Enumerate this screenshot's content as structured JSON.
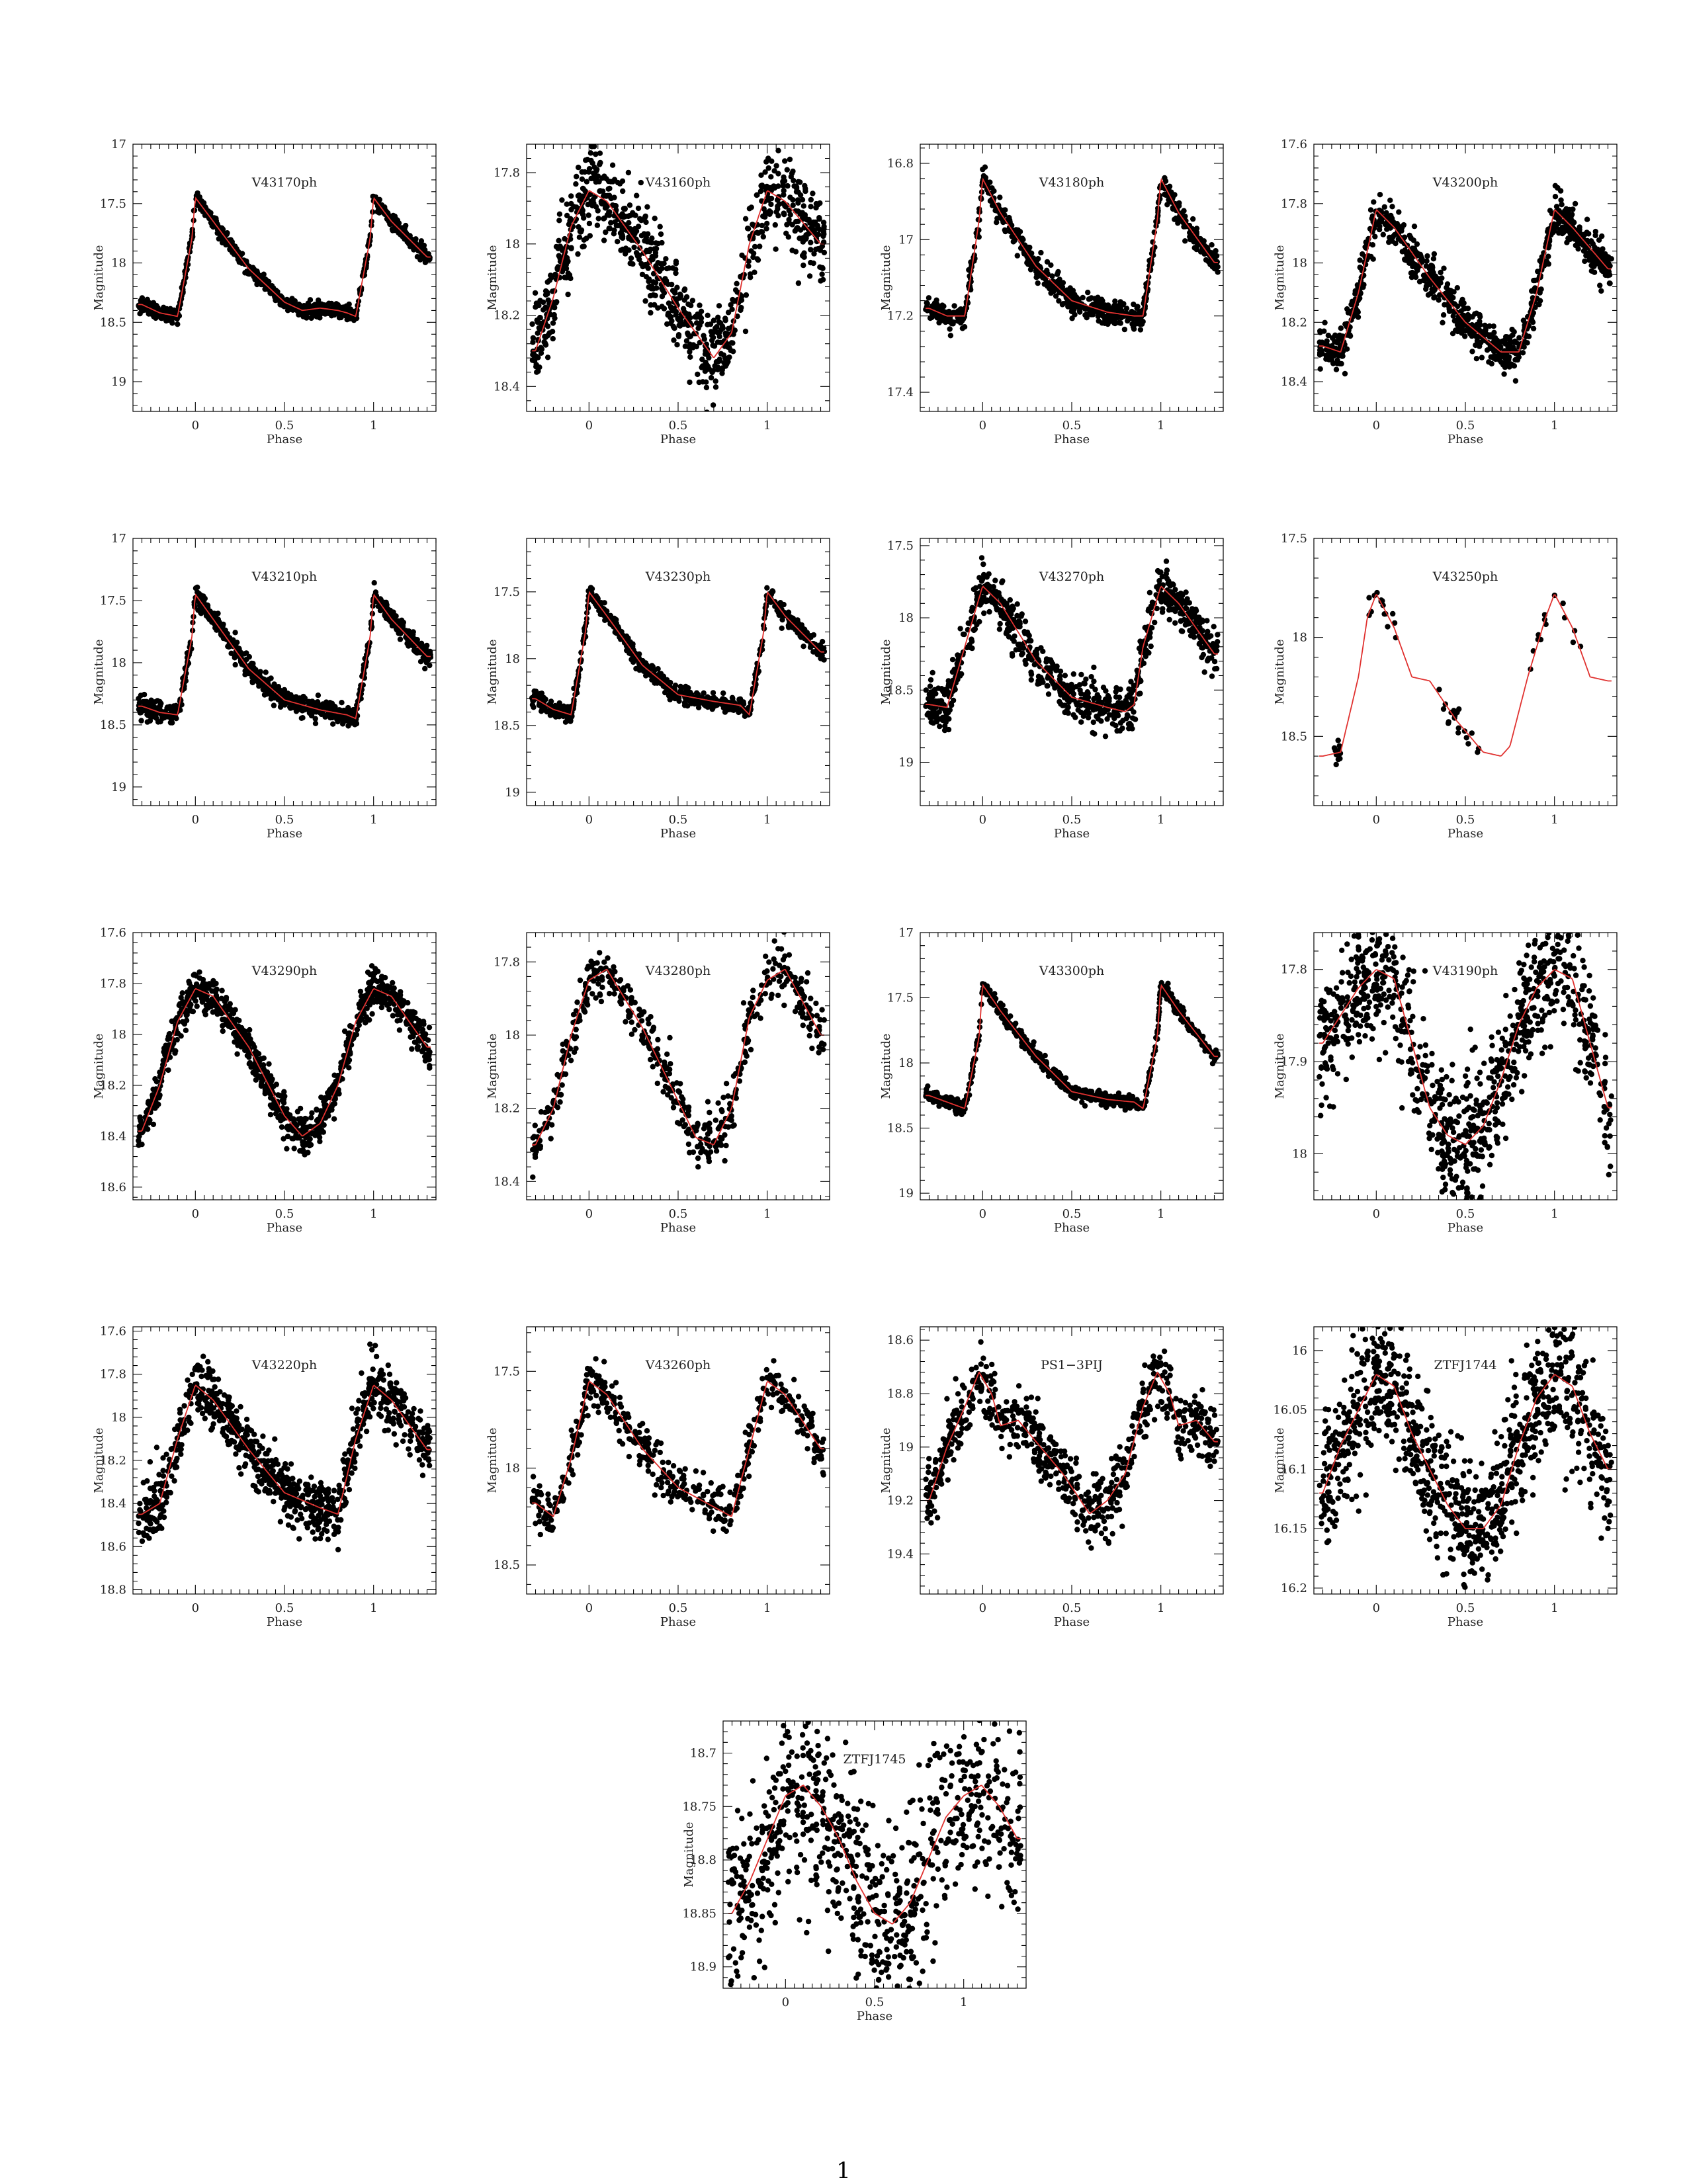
{
  "page_number": "1",
  "chart_data": [
    {
      "type": "scatter",
      "title": "V43170ph",
      "xlabel": "Phase",
      "ylabel": "Magnitude",
      "xlim": [
        -0.35,
        1.35
      ],
      "xticks": [
        0,
        0.5,
        1
      ],
      "ylim": [
        19.25,
        17.0
      ],
      "yticks": [
        17,
        17.5,
        18,
        18.5,
        19
      ],
      "curve": {
        "x": [
          -0.3,
          -0.2,
          -0.1,
          -0.02,
          0.0,
          0.1,
          0.3,
          0.5,
          0.6,
          0.7,
          0.8,
          0.85,
          0.9,
          0.98,
          1.0,
          1.1,
          1.3
        ],
        "y": [
          18.35,
          18.42,
          18.45,
          17.8,
          17.45,
          17.65,
          18.05,
          18.33,
          18.4,
          18.38,
          18.4,
          18.42,
          18.45,
          17.8,
          17.45,
          17.65,
          17.95
        ]
      },
      "scatter": 0.03,
      "npts": 900
    },
    {
      "type": "scatter",
      "title": "V43160ph",
      "xlabel": "Phase",
      "ylabel": "Magnitude",
      "xlim": [
        -0.35,
        1.35
      ],
      "xticks": [
        0,
        0.5,
        1
      ],
      "ylim": [
        18.47,
        17.72
      ],
      "yticks": [
        17.8,
        18,
        18.2,
        18.4
      ],
      "curve": {
        "x": [
          -0.3,
          -0.2,
          -0.1,
          0.0,
          0.1,
          0.3,
          0.5,
          0.7,
          0.8,
          0.9,
          1.0,
          1.1,
          1.3
        ],
        "y": [
          18.3,
          18.15,
          17.95,
          17.85,
          17.88,
          18.02,
          18.18,
          18.32,
          18.25,
          18.0,
          17.85,
          17.88,
          18.0
        ]
      },
      "scatter": 0.06,
      "npts": 900
    },
    {
      "type": "scatter",
      "title": "V43180ph",
      "xlabel": "Phase",
      "ylabel": "Magnitude",
      "xlim": [
        -0.35,
        1.35
      ],
      "xticks": [
        0,
        0.5,
        1
      ],
      "ylim": [
        17.45,
        16.75
      ],
      "yticks": [
        16.8,
        17,
        17.2,
        17.4
      ],
      "curve": {
        "x": [
          -0.3,
          -0.2,
          -0.1,
          -0.02,
          0.0,
          0.1,
          0.3,
          0.5,
          0.7,
          0.85,
          0.9,
          0.98,
          1.0,
          1.1,
          1.3
        ],
        "y": [
          17.18,
          17.2,
          17.2,
          16.95,
          16.84,
          16.93,
          17.07,
          17.16,
          17.19,
          17.2,
          17.2,
          16.95,
          16.84,
          16.93,
          17.06
        ]
      },
      "scatter": 0.015,
      "npts": 800
    },
    {
      "type": "scatter",
      "title": "V43200ph",
      "xlabel": "Phase",
      "ylabel": "Magnitude",
      "xlim": [
        -0.35,
        1.35
      ],
      "xticks": [
        0,
        0.5,
        1
      ],
      "ylim": [
        18.5,
        17.6
      ],
      "yticks": [
        17.6,
        17.8,
        18,
        18.2,
        18.4
      ],
      "curve": {
        "x": [
          -0.3,
          -0.2,
          -0.1,
          0.0,
          0.1,
          0.3,
          0.5,
          0.7,
          0.8,
          0.9,
          1.0,
          1.1,
          1.3
        ],
        "y": [
          18.28,
          18.3,
          18.1,
          17.82,
          17.88,
          18.05,
          18.2,
          18.3,
          18.3,
          18.1,
          17.82,
          17.88,
          18.02
        ]
      },
      "scatter": 0.035,
      "npts": 900
    },
    {
      "type": "scatter",
      "title": "V43210ph",
      "xlabel": "Phase",
      "ylabel": "Magnitude",
      "xlim": [
        -0.35,
        1.35
      ],
      "xticks": [
        0,
        0.5,
        1
      ],
      "ylim": [
        19.15,
        17.0
      ],
      "yticks": [
        17,
        17.5,
        18,
        18.5,
        19
      ],
      "curve": {
        "x": [
          -0.3,
          -0.2,
          -0.1,
          -0.02,
          0.0,
          0.1,
          0.3,
          0.5,
          0.7,
          0.85,
          0.9,
          0.98,
          1.0,
          1.1,
          1.3
        ],
        "y": [
          18.35,
          18.4,
          18.42,
          17.8,
          17.45,
          17.65,
          18.05,
          18.3,
          18.38,
          18.42,
          18.45,
          17.8,
          17.45,
          17.65,
          17.95
        ]
      },
      "scatter": 0.04,
      "npts": 900
    },
    {
      "type": "scatter",
      "title": "V43230ph",
      "xlabel": "Phase",
      "ylabel": "Magnitude",
      "xlim": [
        -0.35,
        1.35
      ],
      "xticks": [
        0,
        0.5,
        1
      ],
      "ylim": [
        19.1,
        17.1
      ],
      "yticks": [
        17.5,
        18,
        18.5,
        19
      ],
      "curve": {
        "x": [
          -0.3,
          -0.2,
          -0.1,
          -0.02,
          0.0,
          0.1,
          0.3,
          0.5,
          0.7,
          0.85,
          0.9,
          0.98,
          1.0,
          1.1,
          1.3
        ],
        "y": [
          18.3,
          18.38,
          18.42,
          17.8,
          17.5,
          17.68,
          18.05,
          18.27,
          18.32,
          18.35,
          18.42,
          17.8,
          17.5,
          17.68,
          17.95
        ]
      },
      "scatter": 0.03,
      "npts": 800
    },
    {
      "type": "scatter",
      "title": "V43270ph",
      "xlabel": "Phase",
      "ylabel": "Magnitude",
      "xlim": [
        -0.35,
        1.35
      ],
      "xticks": [
        0,
        0.5,
        1
      ],
      "ylim": [
        19.3,
        17.45
      ],
      "yticks": [
        17.5,
        18,
        18.5,
        19
      ],
      "curve": {
        "x": [
          -0.3,
          -0.2,
          -0.1,
          0.0,
          0.1,
          0.3,
          0.5,
          0.7,
          0.8,
          0.85,
          0.9,
          1.0,
          1.1,
          1.3
        ],
        "y": [
          18.6,
          18.62,
          18.2,
          17.78,
          17.9,
          18.3,
          18.55,
          18.62,
          18.65,
          18.6,
          18.2,
          17.78,
          17.9,
          18.25
        ]
      },
      "scatter": 0.08,
      "npts": 800
    },
    {
      "type": "scatter",
      "title": "V43250ph",
      "xlabel": "Phase",
      "ylabel": "Magnitude",
      "xlim": [
        -0.35,
        1.35
      ],
      "xticks": [
        0,
        0.5,
        1
      ],
      "ylim": [
        18.85,
        17.5
      ],
      "yticks": [
        17.5,
        18,
        18.5
      ],
      "curve": {
        "x": [
          -0.3,
          -0.2,
          -0.1,
          -0.05,
          0.0,
          0.1,
          0.2,
          0.3,
          0.45,
          0.6,
          0.7,
          0.75,
          0.85,
          0.95,
          1.0,
          1.1,
          1.2,
          1.3
        ],
        "y": [
          18.6,
          18.58,
          18.2,
          17.9,
          17.78,
          17.95,
          18.2,
          18.22,
          18.42,
          18.58,
          18.6,
          18.55,
          18.2,
          17.9,
          17.78,
          17.95,
          18.2,
          18.22
        ]
      },
      "scatter": 0.03,
      "npts": 60,
      "clusters": [
        [
          -0.25,
          -0.2
        ],
        [
          -0.05,
          0.15
        ],
        [
          0.35,
          0.6
        ],
        [
          0.85,
          1.15
        ]
      ]
    },
    {
      "type": "scatter",
      "title": "V43290ph",
      "xlabel": "Phase",
      "ylabel": "Magnitude",
      "xlim": [
        -0.35,
        1.35
      ],
      "xticks": [
        0,
        0.5,
        1
      ],
      "ylim": [
        18.65,
        17.6
      ],
      "yticks": [
        17.6,
        17.8,
        18,
        18.2,
        18.4,
        18.6
      ],
      "curve": {
        "x": [
          -0.3,
          -0.2,
          -0.1,
          0.0,
          0.1,
          0.3,
          0.5,
          0.6,
          0.7,
          0.8,
          0.9,
          1.0,
          1.1,
          1.3
        ],
        "y": [
          18.38,
          18.2,
          17.95,
          17.82,
          17.85,
          18.05,
          18.32,
          18.4,
          18.35,
          18.2,
          17.95,
          17.82,
          17.85,
          18.05
        ]
      },
      "scatter": 0.04,
      "npts": 900
    },
    {
      "type": "scatter",
      "title": "V43280ph",
      "xlabel": "Phase",
      "ylabel": "Magnitude",
      "xlim": [
        -0.35,
        1.35
      ],
      "xticks": [
        0,
        0.5,
        1
      ],
      "ylim": [
        18.45,
        17.72
      ],
      "yticks": [
        17.8,
        18,
        18.2,
        18.4
      ],
      "curve": {
        "x": [
          -0.3,
          -0.2,
          -0.1,
          0.0,
          0.1,
          0.3,
          0.5,
          0.6,
          0.7,
          0.8,
          0.9,
          1.0,
          1.1,
          1.3
        ],
        "y": [
          18.3,
          18.2,
          18.0,
          17.85,
          17.82,
          17.98,
          18.18,
          18.28,
          18.3,
          18.2,
          17.95,
          17.85,
          17.82,
          18.0
        ]
      },
      "scatter": 0.035,
      "npts": 500
    },
    {
      "type": "scatter",
      "title": "V43300ph",
      "xlabel": "Phase",
      "ylabel": "Magnitude",
      "xlim": [
        -0.35,
        1.35
      ],
      "xticks": [
        0,
        0.5,
        1
      ],
      "ylim": [
        19.05,
        17.0
      ],
      "yticks": [
        17,
        17.5,
        18,
        18.5,
        19
      ],
      "curve": {
        "x": [
          -0.3,
          -0.2,
          -0.1,
          -0.02,
          0.0,
          0.1,
          0.3,
          0.5,
          0.7,
          0.85,
          0.9,
          0.98,
          1.0,
          1.1,
          1.3
        ],
        "y": [
          18.25,
          18.3,
          18.35,
          17.8,
          17.4,
          17.6,
          17.95,
          18.22,
          18.28,
          18.3,
          18.35,
          17.8,
          17.4,
          17.6,
          17.95
        ]
      },
      "scatter": 0.025,
      "npts": 800
    },
    {
      "type": "scatter",
      "title": "V43190ph",
      "xlabel": "Phase",
      "ylabel": "Magnitude",
      "xlim": [
        -0.35,
        1.35
      ],
      "xticks": [
        0,
        0.5,
        1
      ],
      "ylim": [
        18.05,
        17.76
      ],
      "yticks": [
        17.8,
        17.9,
        18
      ],
      "curve": {
        "x": [
          -0.3,
          -0.2,
          -0.1,
          0.0,
          0.1,
          0.2,
          0.3,
          0.4,
          0.5,
          0.6,
          0.7,
          0.8,
          0.9,
          1.0,
          1.1,
          1.2,
          1.3
        ],
        "y": [
          17.88,
          17.85,
          17.82,
          17.8,
          17.81,
          17.88,
          17.95,
          17.98,
          17.99,
          17.97,
          17.92,
          17.86,
          17.82,
          17.8,
          17.81,
          17.88,
          17.95
        ]
      },
      "scatter": 0.035,
      "npts": 900
    },
    {
      "type": "scatter",
      "title": "V43220ph",
      "xlabel": "Phase",
      "ylabel": "Magnitude",
      "xlim": [
        -0.35,
        1.35
      ],
      "xticks": [
        0,
        0.5,
        1
      ],
      "ylim": [
        18.82,
        17.58
      ],
      "yticks": [
        17.6,
        17.8,
        18,
        18.2,
        18.4,
        18.6,
        18.8
      ],
      "curve": {
        "x": [
          -0.3,
          -0.2,
          -0.1,
          0.0,
          0.1,
          0.3,
          0.5,
          0.7,
          0.8,
          0.9,
          1.0,
          1.1,
          1.3
        ],
        "y": [
          18.45,
          18.4,
          18.1,
          17.85,
          17.92,
          18.15,
          18.35,
          18.42,
          18.45,
          18.1,
          17.85,
          17.92,
          18.15
        ]
      },
      "scatter": 0.07,
      "npts": 900
    },
    {
      "type": "scatter",
      "title": "V43260ph",
      "xlabel": "Phase",
      "ylabel": "Magnitude",
      "xlim": [
        -0.35,
        1.35
      ],
      "xticks": [
        0,
        0.5,
        1
      ],
      "ylim": [
        18.65,
        17.27
      ],
      "yticks": [
        17.5,
        18,
        18.5
      ],
      "curve": {
        "x": [
          -0.3,
          -0.2,
          -0.1,
          0.0,
          0.1,
          0.3,
          0.5,
          0.6,
          0.7,
          0.8,
          0.9,
          1.0,
          1.1,
          1.3
        ],
        "y": [
          18.18,
          18.25,
          17.95,
          17.55,
          17.62,
          17.9,
          18.1,
          18.15,
          18.2,
          18.25,
          17.9,
          17.55,
          17.62,
          17.9
        ]
      },
      "scatter": 0.06,
      "npts": 500
    },
    {
      "type": "scatter",
      "title": "PS1−3PIJ",
      "xlabel": "Phase",
      "ylabel": "Magnitude",
      "xlim": [
        -0.35,
        1.35
      ],
      "xticks": [
        0,
        0.5,
        1
      ],
      "ylim": [
        19.55,
        18.55
      ],
      "yticks": [
        18.6,
        18.8,
        19,
        19.2,
        19.4
      ],
      "curve": {
        "x": [
          -0.3,
          -0.2,
          -0.1,
          -0.02,
          0.05,
          0.1,
          0.2,
          0.3,
          0.45,
          0.6,
          0.7,
          0.8,
          0.9,
          0.98,
          1.05,
          1.1,
          1.2,
          1.3
        ],
        "y": [
          19.2,
          19.0,
          18.85,
          18.72,
          18.8,
          18.92,
          18.9,
          18.98,
          19.1,
          19.25,
          19.2,
          19.1,
          18.85,
          18.72,
          18.8,
          18.92,
          18.9,
          18.98
        ]
      },
      "scatter": 0.06,
      "npts": 700
    },
    {
      "type": "scatter",
      "title": "ZTFJ1744",
      "xlabel": "Phase",
      "ylabel": "Magnitude",
      "xlim": [
        -0.35,
        1.35
      ],
      "xticks": [
        0,
        0.5,
        1
      ],
      "ylim": [
        16.205,
        15.98
      ],
      "yticks": [
        16,
        16.05,
        16.1,
        16.15,
        16.2
      ],
      "curve": {
        "x": [
          -0.3,
          -0.2,
          -0.1,
          0.0,
          0.1,
          0.2,
          0.3,
          0.4,
          0.5,
          0.6,
          0.7,
          0.8,
          0.9,
          1.0,
          1.1,
          1.2,
          1.3
        ],
        "y": [
          16.12,
          16.08,
          16.05,
          16.02,
          16.03,
          16.07,
          16.1,
          16.13,
          16.15,
          16.15,
          16.13,
          16.08,
          16.04,
          16.02,
          16.03,
          16.07,
          16.1
        ]
      },
      "scatter": 0.03,
      "npts": 1000
    },
    {
      "type": "scatter",
      "title": "ZTFJ1745",
      "xlabel": "Phase",
      "ylabel": "Magnitude",
      "xlim": [
        -0.35,
        1.35
      ],
      "xticks": [
        0,
        0.5,
        1
      ],
      "ylim": [
        18.92,
        18.67
      ],
      "yticks": [
        18.7,
        18.75,
        18.8,
        18.85,
        18.9
      ],
      "curve": {
        "x": [
          -0.3,
          -0.2,
          -0.1,
          0.0,
          0.1,
          0.2,
          0.3,
          0.4,
          0.5,
          0.6,
          0.7,
          0.8,
          0.9,
          1.0,
          1.1,
          1.2,
          1.3
        ],
        "y": [
          18.85,
          18.82,
          18.78,
          18.74,
          18.73,
          18.75,
          18.78,
          18.82,
          18.85,
          18.86,
          18.84,
          18.8,
          18.76,
          18.74,
          18.73,
          18.75,
          18.78
        ]
      },
      "scatter": 0.045,
      "npts": 800
    }
  ]
}
